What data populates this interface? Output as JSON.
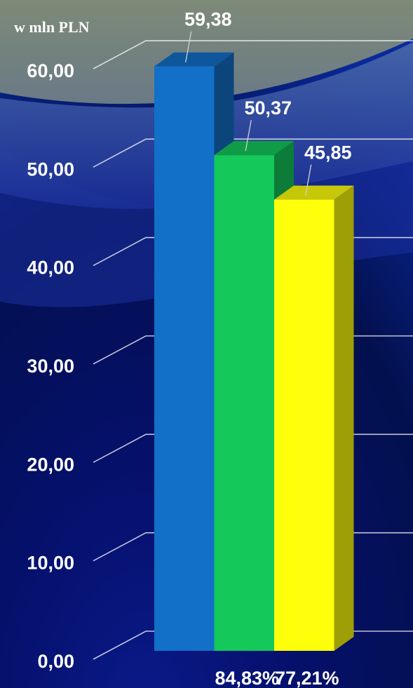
{
  "chart_data": {
    "type": "bar",
    "unit_label": "w mln PLN",
    "ylim": [
      0,
      60
    ],
    "y_ticks": [
      "0,00",
      "10,00",
      "20,00",
      "30,00",
      "40,00",
      "50,00",
      "60,00"
    ],
    "y_tick_values": [
      0,
      10,
      20,
      30,
      40,
      50,
      60
    ],
    "grid": true,
    "legend": "none",
    "values": [
      59.38,
      50.37,
      45.85
    ],
    "value_labels": [
      "59,38",
      "50,37",
      "45,85"
    ],
    "percent_labels": [
      "",
      "84,83%",
      "77,21%"
    ],
    "colors": [
      "#1270c8",
      "#14c85a",
      "#ffff0c"
    ]
  }
}
